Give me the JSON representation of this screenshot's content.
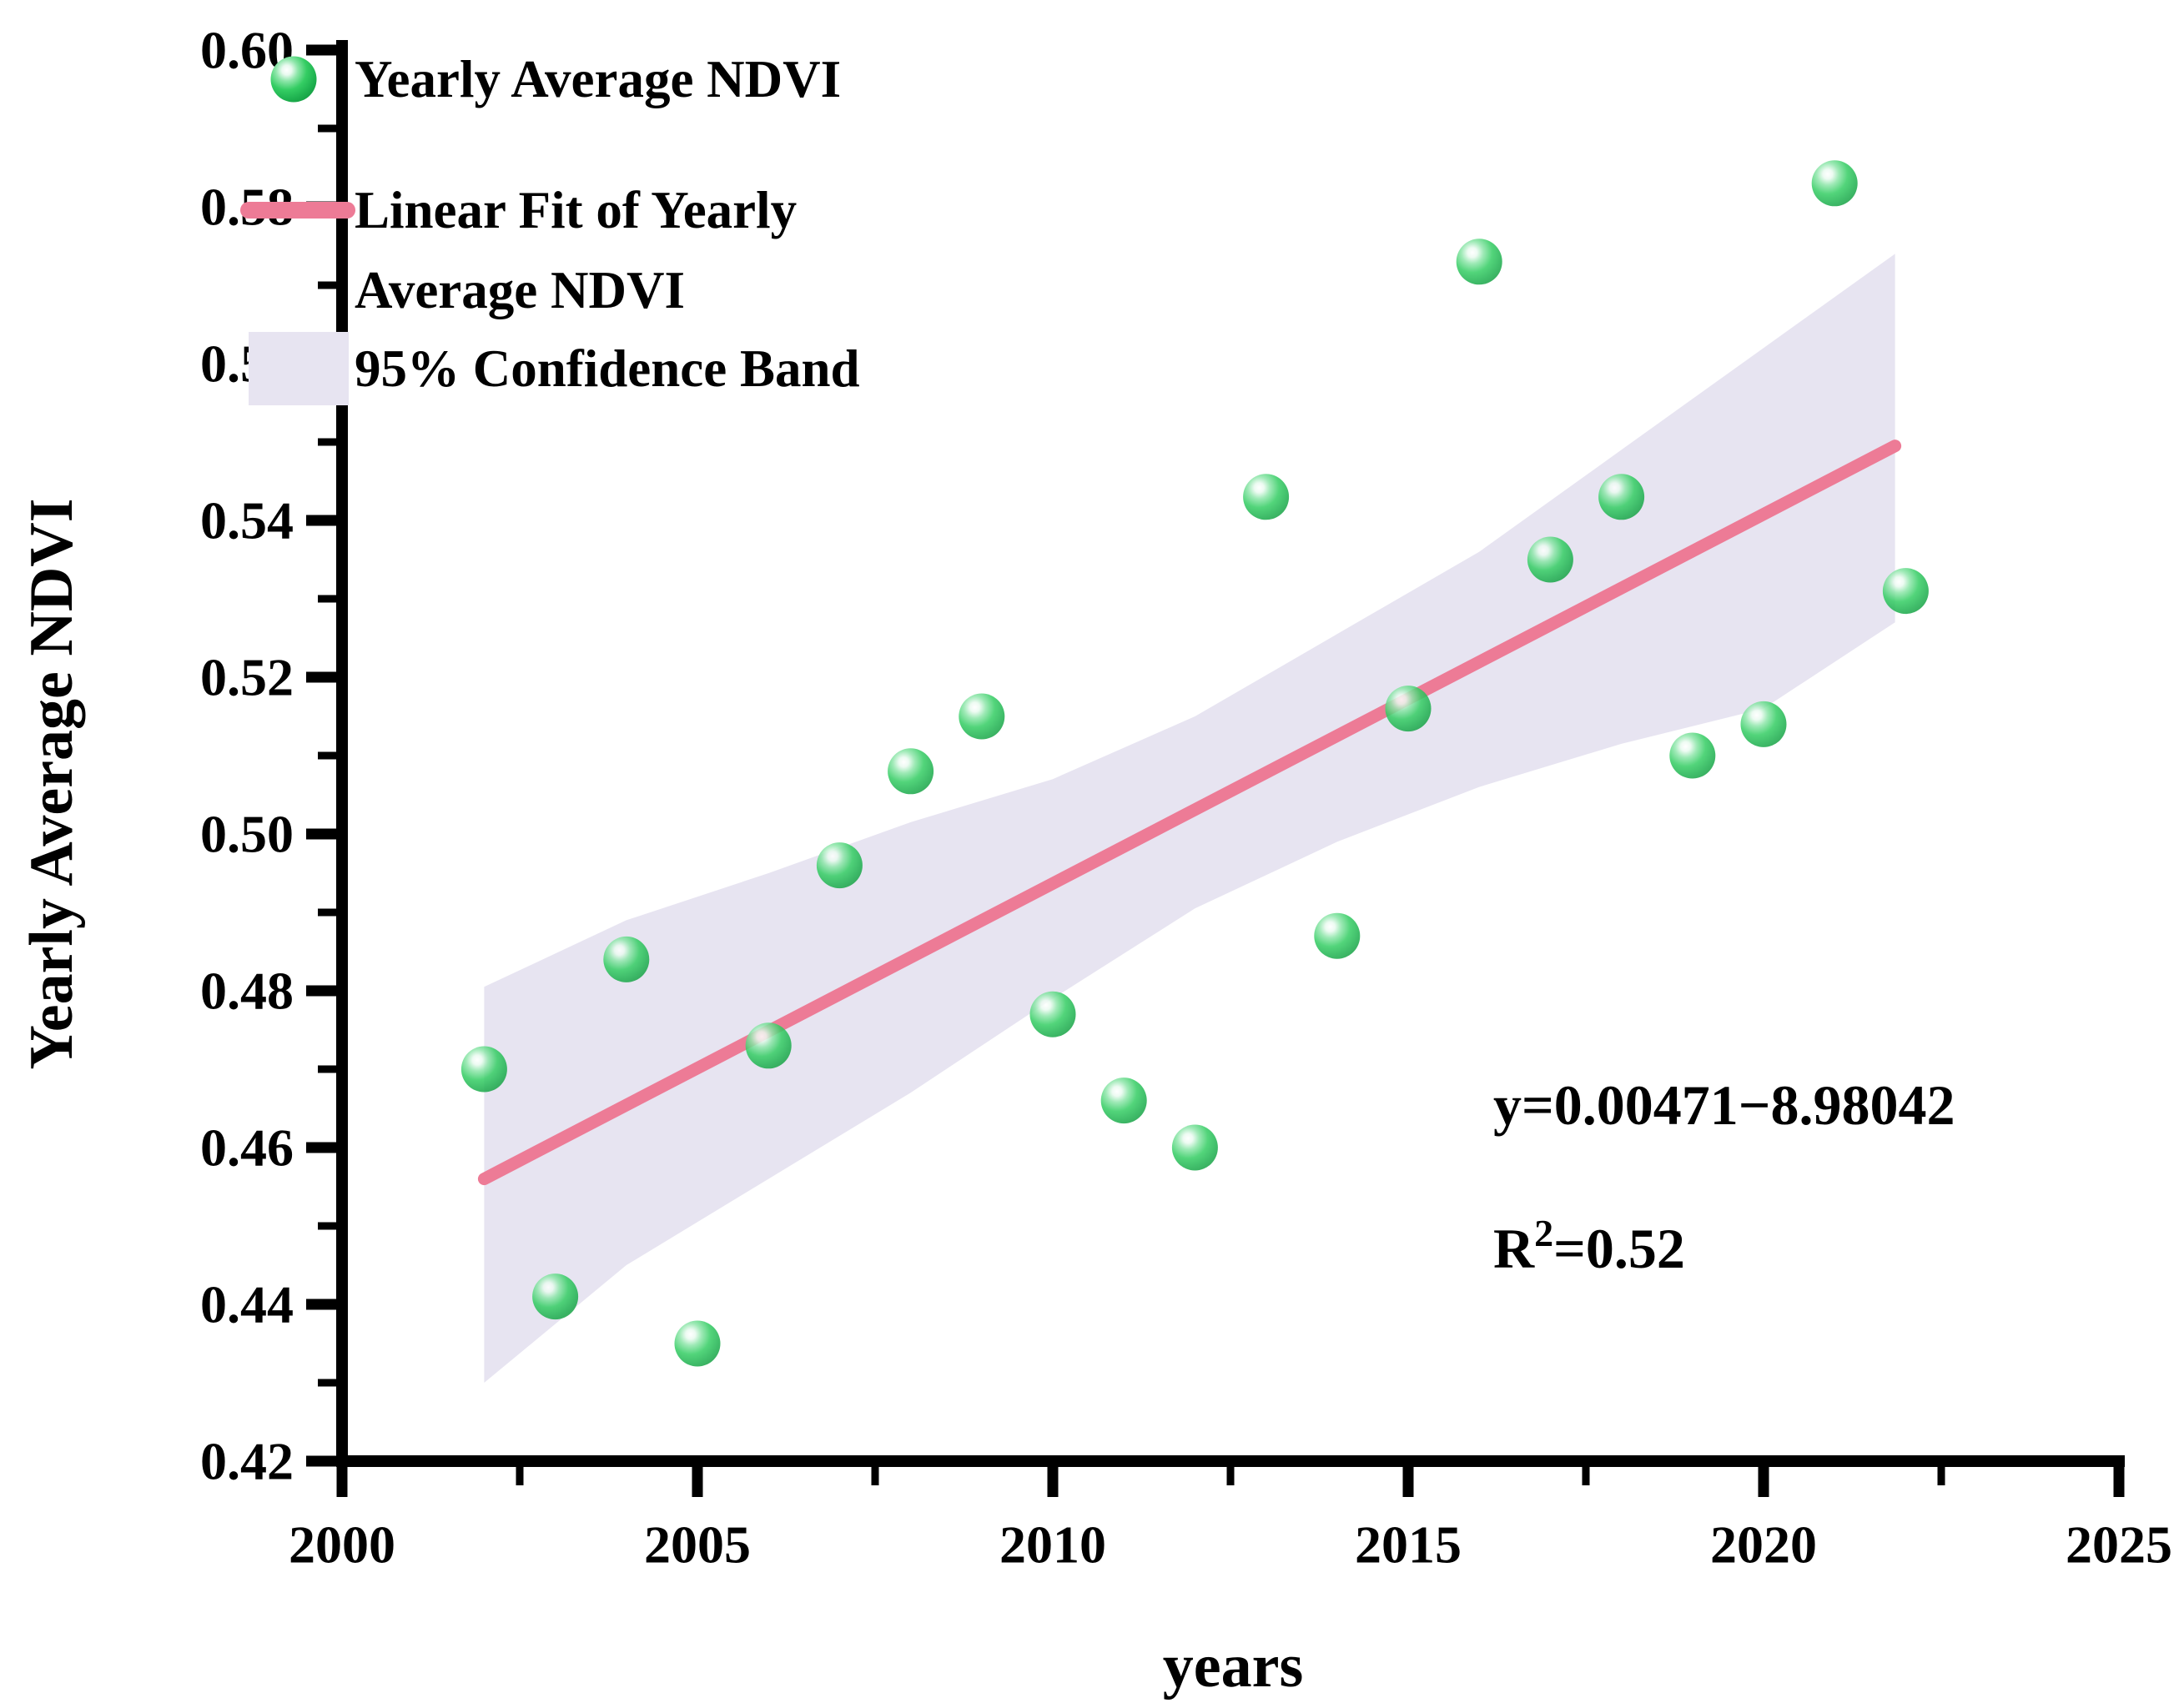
{
  "chart_data": {
    "type": "scatter",
    "title": "",
    "xlabel": "years",
    "ylabel": "Yearly Average NDVI",
    "xlim": [
      2000,
      2025
    ],
    "ylim": [
      0.42,
      0.6
    ],
    "x_major_ticks": [
      2000,
      2005,
      2010,
      2015,
      2020,
      2025
    ],
    "x_minor_ticks": [
      2002.5,
      2007.5,
      2012.5,
      2017.5,
      2022.5
    ],
    "y_major_ticks": [
      0.42,
      0.44,
      0.46,
      0.48,
      0.5,
      0.52,
      0.54,
      0.56,
      0.58,
      0.6
    ],
    "y_minor_ticks": [
      0.43,
      0.45,
      0.47,
      0.49,
      0.51,
      0.53,
      0.55,
      0.57,
      0.59
    ],
    "grid": false,
    "legend_position": "top-left",
    "series": [
      {
        "name": "Yearly Average NDVI",
        "type": "scatter",
        "marker": "sphere",
        "color": "#2bc95c",
        "x": [
          2002,
          2003,
          2004,
          2005,
          2006,
          2007,
          2008,
          2009,
          2010,
          2011,
          2012,
          2013,
          2014,
          2015,
          2016,
          2017,
          2018,
          2019,
          2020,
          2021,
          2022
        ],
        "y": [
          0.47,
          0.441,
          0.484,
          0.435,
          0.473,
          0.496,
          0.508,
          0.515,
          0.477,
          0.466,
          0.46,
          0.543,
          0.487,
          0.516,
          0.573,
          0.535,
          0.543,
          0.51,
          0.514,
          0.583,
          0.531
        ]
      },
      {
        "name": "Linear Fit of Yearly Average NDVI",
        "type": "line",
        "color": "#ed7b96",
        "x": [
          2002,
          2021.85
        ],
        "y": [
          0.456,
          0.5495
        ]
      },
      {
        "name": "95% Confidence Band",
        "type": "band",
        "color": "#e7e4f1",
        "points": [
          {
            "x": 2002,
            "upper": 0.4805,
            "lower": 0.43
          },
          {
            "x": 2004,
            "upper": 0.489,
            "lower": 0.445
          },
          {
            "x": 2006,
            "upper": 0.495,
            "lower": 0.456
          },
          {
            "x": 2008,
            "upper": 0.5015,
            "lower": 0.467
          },
          {
            "x": 2010,
            "upper": 0.507,
            "lower": 0.479
          },
          {
            "x": 2012,
            "upper": 0.515,
            "lower": 0.4905
          },
          {
            "x": 2014,
            "upper": 0.5255,
            "lower": 0.499
          },
          {
            "x": 2016,
            "upper": 0.536,
            "lower": 0.506
          },
          {
            "x": 2018,
            "upper": 0.549,
            "lower": 0.5115
          },
          {
            "x": 2020,
            "upper": 0.562,
            "lower": 0.516
          },
          {
            "x": 2021.85,
            "upper": 0.574,
            "lower": 0.527
          }
        ]
      }
    ],
    "annotations": [
      "y=0.00471−8.98042",
      "R²=0.52"
    ]
  },
  "legend": {
    "items": [
      {
        "marker": "sphere",
        "label": "Yearly Average NDVI"
      },
      {
        "marker": "line",
        "label": "Linear Fit of Yearly",
        "label2": "Average NDVI"
      },
      {
        "marker": "band",
        "label": "95% Confidence Band"
      }
    ]
  },
  "annotation": {
    "line1": "y=0.00471−8.98042",
    "r2_base": "R",
    "r2_sup": "2",
    "r2_rest": "=0.52"
  },
  "colors": {
    "marker_green": "#2bc95c",
    "fit_line_pink": "#ed7b96",
    "band_lavender": "#e7e4f1",
    "axis_black": "#000000"
  }
}
